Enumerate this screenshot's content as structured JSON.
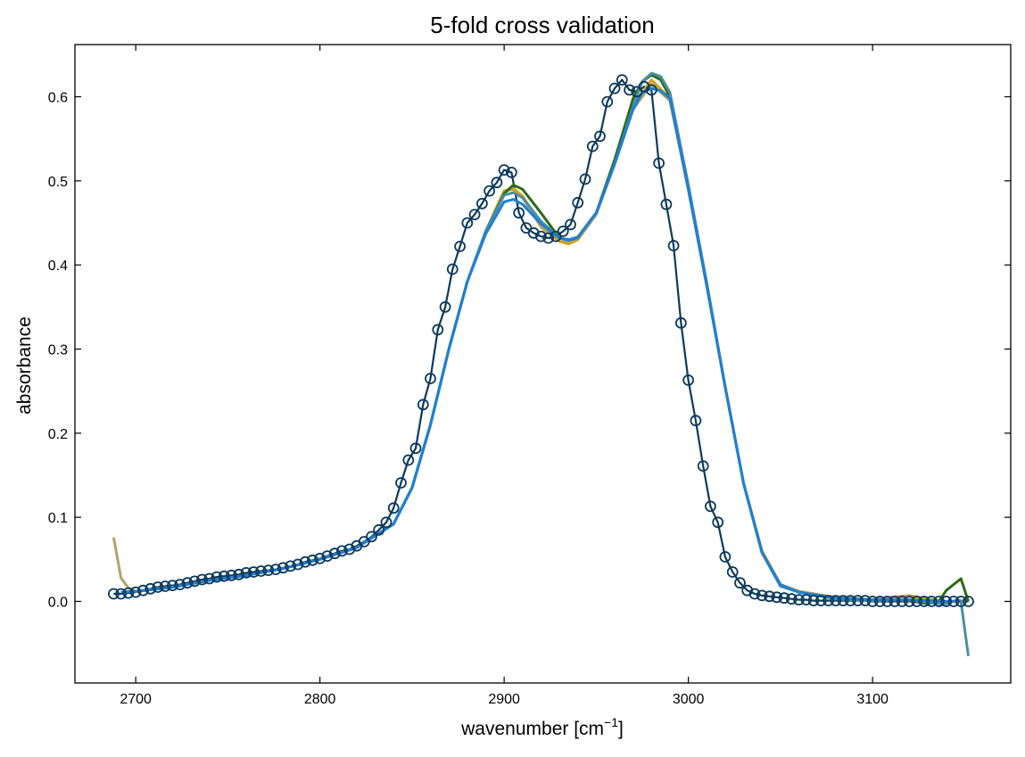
{
  "chart_data": {
    "type": "line",
    "title": "5-fold cross validation",
    "xlabel": "wavenumber [cm",
    "xlabel_sup": "−1",
    "xlabel_suffix": "]",
    "ylabel": "absorbance",
    "xlim": [
      2667,
      3175
    ],
    "ylim": [
      -0.097,
      0.662
    ],
    "xticks": [
      2700,
      2800,
      2900,
      3000,
      3100
    ],
    "xtick_labels": [
      "2700",
      "2800",
      "2900",
      "3000",
      "3100"
    ],
    "yticks": [
      0.0,
      0.1,
      0.2,
      0.3,
      0.4,
      0.5,
      0.6
    ],
    "ytick_labels": [
      "0.0",
      "0.1",
      "0.2",
      "0.3",
      "0.4",
      "0.5",
      "0.6"
    ],
    "grid": false,
    "legend": "none",
    "measured": {
      "color": "#0d3a5c",
      "x": [
        2688,
        2692,
        2696,
        2700,
        2704,
        2708,
        2712,
        2716,
        2720,
        2724,
        2728,
        2732,
        2736,
        2740,
        2744,
        2748,
        2752,
        2756,
        2760,
        2764,
        2768,
        2772,
        2776,
        2780,
        2784,
        2788,
        2792,
        2796,
        2800,
        2804,
        2808,
        2812,
        2816,
        2820,
        2824,
        2828,
        2832,
        2836,
        2840,
        2844,
        2848,
        2852,
        2856,
        2860,
        2864,
        2868,
        2872,
        2876,
        2880,
        2884,
        2888,
        2892,
        2896,
        2900,
        2904,
        2908,
        2912,
        2916,
        2920,
        2924,
        2928,
        2932,
        2936,
        2940,
        2944,
        2948,
        2952,
        2956,
        2960,
        2964,
        2968,
        2972,
        2976,
        2980,
        2984,
        2988,
        2992,
        2996,
        3000,
        3004,
        3008,
        3012,
        3016,
        3020,
        3024,
        3028,
        3032,
        3036,
        3040,
        3044,
        3048,
        3052,
        3056,
        3060,
        3064,
        3068,
        3072,
        3076,
        3080,
        3084,
        3088,
        3092,
        3096,
        3100,
        3104,
        3108,
        3112,
        3116,
        3120,
        3124,
        3128,
        3132,
        3136,
        3140,
        3144,
        3148,
        3152
      ],
      "y": [
        0.009,
        0.009,
        0.01,
        0.011,
        0.013,
        0.015,
        0.017,
        0.018,
        0.019,
        0.02,
        0.022,
        0.024,
        0.026,
        0.027,
        0.029,
        0.03,
        0.031,
        0.032,
        0.034,
        0.035,
        0.036,
        0.037,
        0.038,
        0.04,
        0.042,
        0.044,
        0.047,
        0.049,
        0.051,
        0.054,
        0.057,
        0.06,
        0.062,
        0.066,
        0.071,
        0.077,
        0.085,
        0.094,
        0.111,
        0.141,
        0.168,
        0.182,
        0.234,
        0.265,
        0.323,
        0.35,
        0.395,
        0.422,
        0.45,
        0.46,
        0.473,
        0.488,
        0.498,
        0.513,
        0.51,
        0.462,
        0.444,
        0.438,
        0.434,
        0.432,
        0.434,
        0.44,
        0.448,
        0.474,
        0.502,
        0.541,
        0.553,
        0.594,
        0.61,
        0.62,
        0.608,
        0.606,
        0.612,
        0.608,
        0.521,
        0.472,
        0.423,
        0.331,
        0.263,
        0.215,
        0.161,
        0.113,
        0.094,
        0.053,
        0.035,
        0.022,
        0.013,
        0.009,
        0.007,
        0.006,
        0.005,
        0.004,
        0.003,
        0.002,
        0.002,
        0.001,
        0.001,
        0.001,
        0.001,
        0.001,
        0.001,
        0.001,
        0.001,
        0.0,
        0.0,
        0.0,
        0.0,
        0.0,
        0.0,
        0.0,
        0.0,
        0.0,
        0.0,
        0.0,
        0.0,
        0.0,
        0.0
      ]
    },
    "fits": [
      {
        "color": "#b3a36b",
        "x": [
          2688,
          2692,
          2696,
          2700,
          2720,
          2740,
          2760,
          2780,
          2800,
          2820,
          2840,
          2850,
          2860,
          2870,
          2880,
          2890,
          2900,
          2905,
          2910,
          2920,
          2930,
          2935,
          2940,
          2950,
          2960,
          2970,
          2980,
          2990,
          3000,
          3010,
          3020,
          3030,
          3040,
          3050,
          3060,
          3080,
          3100,
          3110,
          3120,
          3130,
          3140,
          3145,
          3150
        ],
        "y": [
          0.076,
          0.028,
          0.016,
          0.012,
          0.017,
          0.025,
          0.031,
          0.039,
          0.05,
          0.064,
          0.092,
          0.135,
          0.21,
          0.3,
          0.38,
          0.44,
          0.488,
          0.49,
          0.48,
          0.445,
          0.428,
          0.426,
          0.43,
          0.46,
          0.52,
          0.585,
          0.615,
          0.595,
          0.49,
          0.375,
          0.255,
          0.14,
          0.06,
          0.02,
          0.012,
          0.005,
          0.002,
          0.005,
          0.006,
          0.003,
          0.0,
          0.0,
          0.001
        ]
      },
      {
        "color": "#d4a21a",
        "x": [
          2692,
          2700,
          2720,
          2740,
          2760,
          2780,
          2800,
          2820,
          2840,
          2850,
          2860,
          2870,
          2880,
          2890,
          2900,
          2905,
          2910,
          2920,
          2930,
          2935,
          2940,
          2950,
          2960,
          2970,
          2980,
          2990,
          3000,
          3010,
          3020,
          3030,
          3040,
          3050,
          3060,
          3080,
          3100,
          3110,
          3120,
          3130,
          3140,
          3148
        ],
        "y": [
          0.011,
          0.012,
          0.017,
          0.025,
          0.031,
          0.039,
          0.05,
          0.064,
          0.092,
          0.135,
          0.21,
          0.3,
          0.38,
          0.44,
          0.488,
          0.491,
          0.482,
          0.448,
          0.428,
          0.425,
          0.43,
          0.462,
          0.525,
          0.59,
          0.62,
          0.598,
          0.49,
          0.375,
          0.255,
          0.14,
          0.06,
          0.02,
          0.012,
          0.004,
          0.002,
          0.005,
          0.007,
          0.003,
          -0.001,
          0.0
        ]
      },
      {
        "color": "#2b6b17",
        "x": [
          2692,
          2700,
          2720,
          2740,
          2760,
          2780,
          2800,
          2820,
          2840,
          2850,
          2860,
          2870,
          2880,
          2890,
          2900,
          2905,
          2910,
          2920,
          2930,
          2935,
          2940,
          2950,
          2960,
          2970,
          2975,
          2980,
          2985,
          2990,
          3000,
          3010,
          3020,
          3030,
          3040,
          3050,
          3060,
          3080,
          3100,
          3110,
          3120,
          3130,
          3136,
          3140,
          3144,
          3148,
          3152
        ],
        "y": [
          0.011,
          0.012,
          0.017,
          0.025,
          0.031,
          0.039,
          0.05,
          0.064,
          0.092,
          0.135,
          0.21,
          0.3,
          0.38,
          0.44,
          0.485,
          0.495,
          0.49,
          0.462,
          0.432,
          0.43,
          0.433,
          0.462,
          0.525,
          0.598,
          0.618,
          0.626,
          0.62,
          0.6,
          0.495,
          0.378,
          0.255,
          0.14,
          0.058,
          0.018,
          0.011,
          0.003,
          0.001,
          0.002,
          0.001,
          -0.003,
          0.0,
          0.013,
          0.02,
          0.027,
          0.0
        ]
      },
      {
        "color": "#4a90a4",
        "x": [
          2692,
          2700,
          2720,
          2740,
          2760,
          2780,
          2800,
          2820,
          2840,
          2850,
          2860,
          2870,
          2880,
          2890,
          2900,
          2905,
          2910,
          2920,
          2930,
          2935,
          2940,
          2950,
          2960,
          2970,
          2975,
          2980,
          2985,
          2990,
          3000,
          3010,
          3020,
          3030,
          3040,
          3050,
          3060,
          3080,
          3100,
          3120,
          3136,
          3140,
          3145,
          3148,
          3152
        ],
        "y": [
          0.011,
          0.012,
          0.017,
          0.025,
          0.031,
          0.039,
          0.05,
          0.064,
          0.092,
          0.135,
          0.21,
          0.3,
          0.38,
          0.44,
          0.483,
          0.486,
          0.48,
          0.452,
          0.432,
          0.429,
          0.432,
          0.462,
          0.52,
          0.588,
          0.618,
          0.628,
          0.624,
          0.605,
          0.495,
          0.378,
          0.255,
          0.14,
          0.058,
          0.018,
          0.011,
          0.003,
          0.001,
          0.002,
          -0.003,
          -0.003,
          0.001,
          0.0,
          -0.065
        ]
      },
      {
        "color": "#1e7fd8",
        "x": [
          2692,
          2700,
          2720,
          2740,
          2760,
          2780,
          2800,
          2820,
          2840,
          2850,
          2860,
          2870,
          2880,
          2890,
          2900,
          2905,
          2910,
          2920,
          2930,
          2935,
          2940,
          2950,
          2960,
          2970,
          2975,
          2980,
          2985,
          2990,
          3000,
          3010,
          3020,
          3030,
          3040,
          3050,
          3060,
          3080,
          3100,
          3120,
          3140,
          3148
        ],
        "y": [
          0.011,
          0.012,
          0.017,
          0.025,
          0.031,
          0.039,
          0.05,
          0.064,
          0.092,
          0.135,
          0.21,
          0.3,
          0.38,
          0.437,
          0.475,
          0.478,
          0.472,
          0.449,
          0.432,
          0.43,
          0.433,
          0.462,
          0.52,
          0.585,
          0.605,
          0.61,
          0.607,
          0.598,
          0.49,
          0.375,
          0.255,
          0.14,
          0.058,
          0.02,
          0.011,
          0.004,
          0.002,
          0.002,
          0.0,
          0.001
        ]
      }
    ]
  }
}
